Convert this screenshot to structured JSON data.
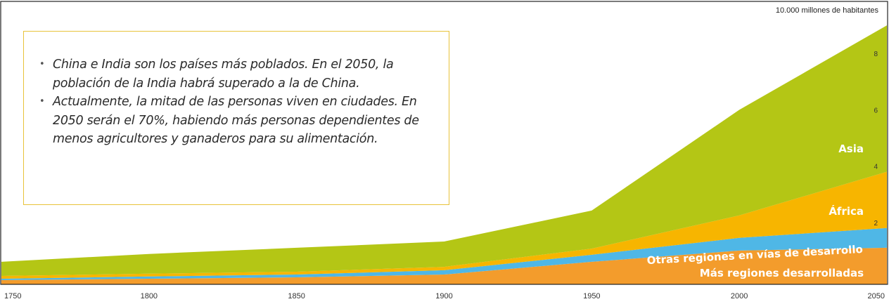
{
  "chart_data": {
    "type": "area",
    "stacked": true,
    "x": [
      1750,
      1800,
      1850,
      1900,
      1950,
      2000,
      2050
    ],
    "xticks": [
      "1750",
      "1800",
      "1850",
      "1900",
      "1950",
      "2000",
      "2050"
    ],
    "ylim": [
      0,
      10
    ],
    "yticks": [
      "2",
      "4",
      "6",
      "8"
    ],
    "unit_label": "10.000 millones de habitantes",
    "series": [
      {
        "name": "Más regiones desarrolladas",
        "color": "#f39c2c",
        "values": [
          0.15,
          0.2,
          0.25,
          0.35,
          0.8,
          1.2,
          1.3
        ]
      },
      {
        "name": "Otras regiones en vías de desarrollo",
        "color": "#4fb7e6",
        "values": [
          0.05,
          0.08,
          0.1,
          0.15,
          0.25,
          0.45,
          0.7
        ]
      },
      {
        "name": "África",
        "color": "#f7b500",
        "values": [
          0.1,
          0.1,
          0.1,
          0.12,
          0.22,
          0.8,
          2.0
        ]
      },
      {
        "name": "Asia",
        "color": "#b4c615",
        "values": [
          0.5,
          0.7,
          0.85,
          0.9,
          1.35,
          3.75,
          5.2
        ]
      }
    ],
    "legend": "inline-right"
  },
  "note": {
    "bullets": [
      "China e India son los países más poblados. En el 2050, la población de la India habrá superado a la de China.",
      "Actualmente, la mitad de las personas viven en ciudades. En 2050 serán el 70%, habiendo más personas dependientes de menos agricultores y ganaderos para su alimentación."
    ]
  }
}
